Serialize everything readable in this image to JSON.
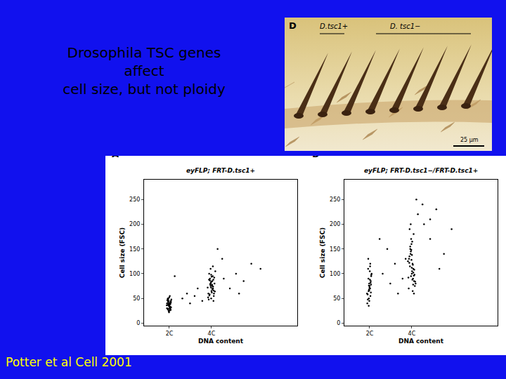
{
  "slide": {
    "title": [
      "Drosophila TSC genes",
      "affect",
      "cell size, but not ploidy"
    ],
    "citation": "Potter et al Cell 2001"
  },
  "photo": {
    "panel": "D",
    "labels": [
      "D.tsc1+",
      "D. tsc1−"
    ],
    "scale_bar": "25 µm"
  },
  "chart_data": [
    {
      "type": "scatter",
      "panel": "A",
      "title": "eyFLP; FRT-D.tsc1+",
      "x_label": "DNA content",
      "y_label": "Cell size (FSC)",
      "xlim": [
        0,
        1000
      ],
      "xticks": [
        {
          "value": 165,
          "label": "2C"
        },
        {
          "value": 440,
          "label": "4C"
        }
      ],
      "ylim": [
        -5,
        290
      ],
      "yticks": [
        0,
        50,
        100,
        150,
        200,
        250
      ],
      "grid": false,
      "color": "#000000",
      "marker": "dot",
      "x": [
        150,
        158,
        162,
        170,
        175,
        168,
        155,
        160,
        172,
        165,
        148,
        178,
        163,
        157,
        169,
        161,
        174,
        152,
        166,
        171,
        159,
        164,
        156,
        173,
        167,
        153,
        176,
        160,
        168,
        162,
        150,
        165,
        170,
        158,
        163,
        175,
        155,
        166,
        161,
        172,
        420,
        435,
        445,
        455,
        430,
        450,
        440,
        425,
        460,
        438,
        448,
        415,
        442,
        452,
        432,
        465,
        428,
        446,
        436,
        458,
        422,
        444,
        434,
        454,
        440,
        426,
        450,
        438,
        462,
        430,
        447,
        418,
        441,
        456,
        433,
        449,
        437,
        424,
        453,
        443,
        300,
        330,
        280,
        520,
        560,
        600,
        650,
        700,
        250,
        350,
        510,
        480,
        620,
        380,
        200,
        760
      ],
      "values": [
        30,
        42,
        35,
        28,
        45,
        38,
        50,
        25,
        33,
        40,
        36,
        48,
        22,
        44,
        31,
        39,
        27,
        46,
        34,
        41,
        29,
        52,
        37,
        43,
        26,
        47,
        32,
        38,
        55,
        24,
        40,
        35,
        30,
        49,
        36,
        42,
        28,
        33,
        45,
        39,
        60,
        75,
        85,
        55,
        90,
        70,
        65,
        100,
        80,
        50,
        95,
        72,
        62,
        88,
        78,
        105,
        58,
        68,
        82,
        92,
        48,
        76,
        110,
        66,
        84,
        56,
        74,
        98,
        64,
        86,
        70,
        52,
        94,
        60,
        80,
        115,
        72,
        88,
        45,
        78,
        40,
        55,
        60,
        90,
        70,
        100,
        85,
        120,
        50,
        70,
        130,
        150,
        60,
        45,
        95,
        110
      ]
    },
    {
      "type": "scatter",
      "panel": "B",
      "title": "eyFLP; FRT-D.tsc1−/FRT-D.tsc1+",
      "x_label": "DNA content",
      "y_label": "Cell size (FSC)",
      "xlim": [
        0,
        1000
      ],
      "xticks": [
        {
          "value": 165,
          "label": "2C"
        },
        {
          "value": 440,
          "label": "4C"
        }
      ],
      "ylim": [
        -5,
        290
      ],
      "yticks": [
        0,
        50,
        100,
        150,
        200,
        250
      ],
      "grid": false,
      "color": "#000000",
      "marker": "dot",
      "x": [
        150,
        158,
        162,
        170,
        175,
        168,
        155,
        160,
        172,
        165,
        148,
        178,
        163,
        157,
        169,
        161,
        174,
        152,
        166,
        171,
        159,
        164,
        156,
        173,
        167,
        153,
        176,
        160,
        168,
        162,
        420,
        435,
        445,
        455,
        430,
        450,
        440,
        425,
        460,
        438,
        448,
        415,
        442,
        452,
        432,
        465,
        428,
        446,
        436,
        458,
        422,
        444,
        434,
        454,
        440,
        426,
        450,
        438,
        462,
        430,
        447,
        418,
        441,
        456,
        433,
        449,
        437,
        424,
        453,
        443,
        300,
        330,
        280,
        520,
        560,
        600,
        650,
        700,
        250,
        350,
        510,
        480,
        620,
        380,
        230,
        560,
        470,
        400
      ],
      "values": [
        40,
        65,
        80,
        55,
        95,
        70,
        110,
        50,
        85,
        75,
        60,
        100,
        45,
        90,
        120,
        68,
        78,
        58,
        105,
        82,
        35,
        72,
        130,
        62,
        88,
        48,
        98,
        76,
        115,
        66,
        70,
        95,
        120,
        85,
        150,
        110,
        100,
        135,
        75,
        160,
        90,
        125,
        105,
        180,
        140,
        80,
        115,
        65,
        170,
        98,
        130,
        88,
        145,
        60,
        112,
        190,
        102,
        128,
        84,
        155,
        118,
        92,
        138,
        108,
        200,
        78,
        148,
        122,
        96,
        165,
        80,
        120,
        150,
        200,
        170,
        230,
        140,
        190,
        100,
        60,
        240,
        220,
        110,
        90,
        170,
        210,
        250,
        130
      ]
    }
  ]
}
